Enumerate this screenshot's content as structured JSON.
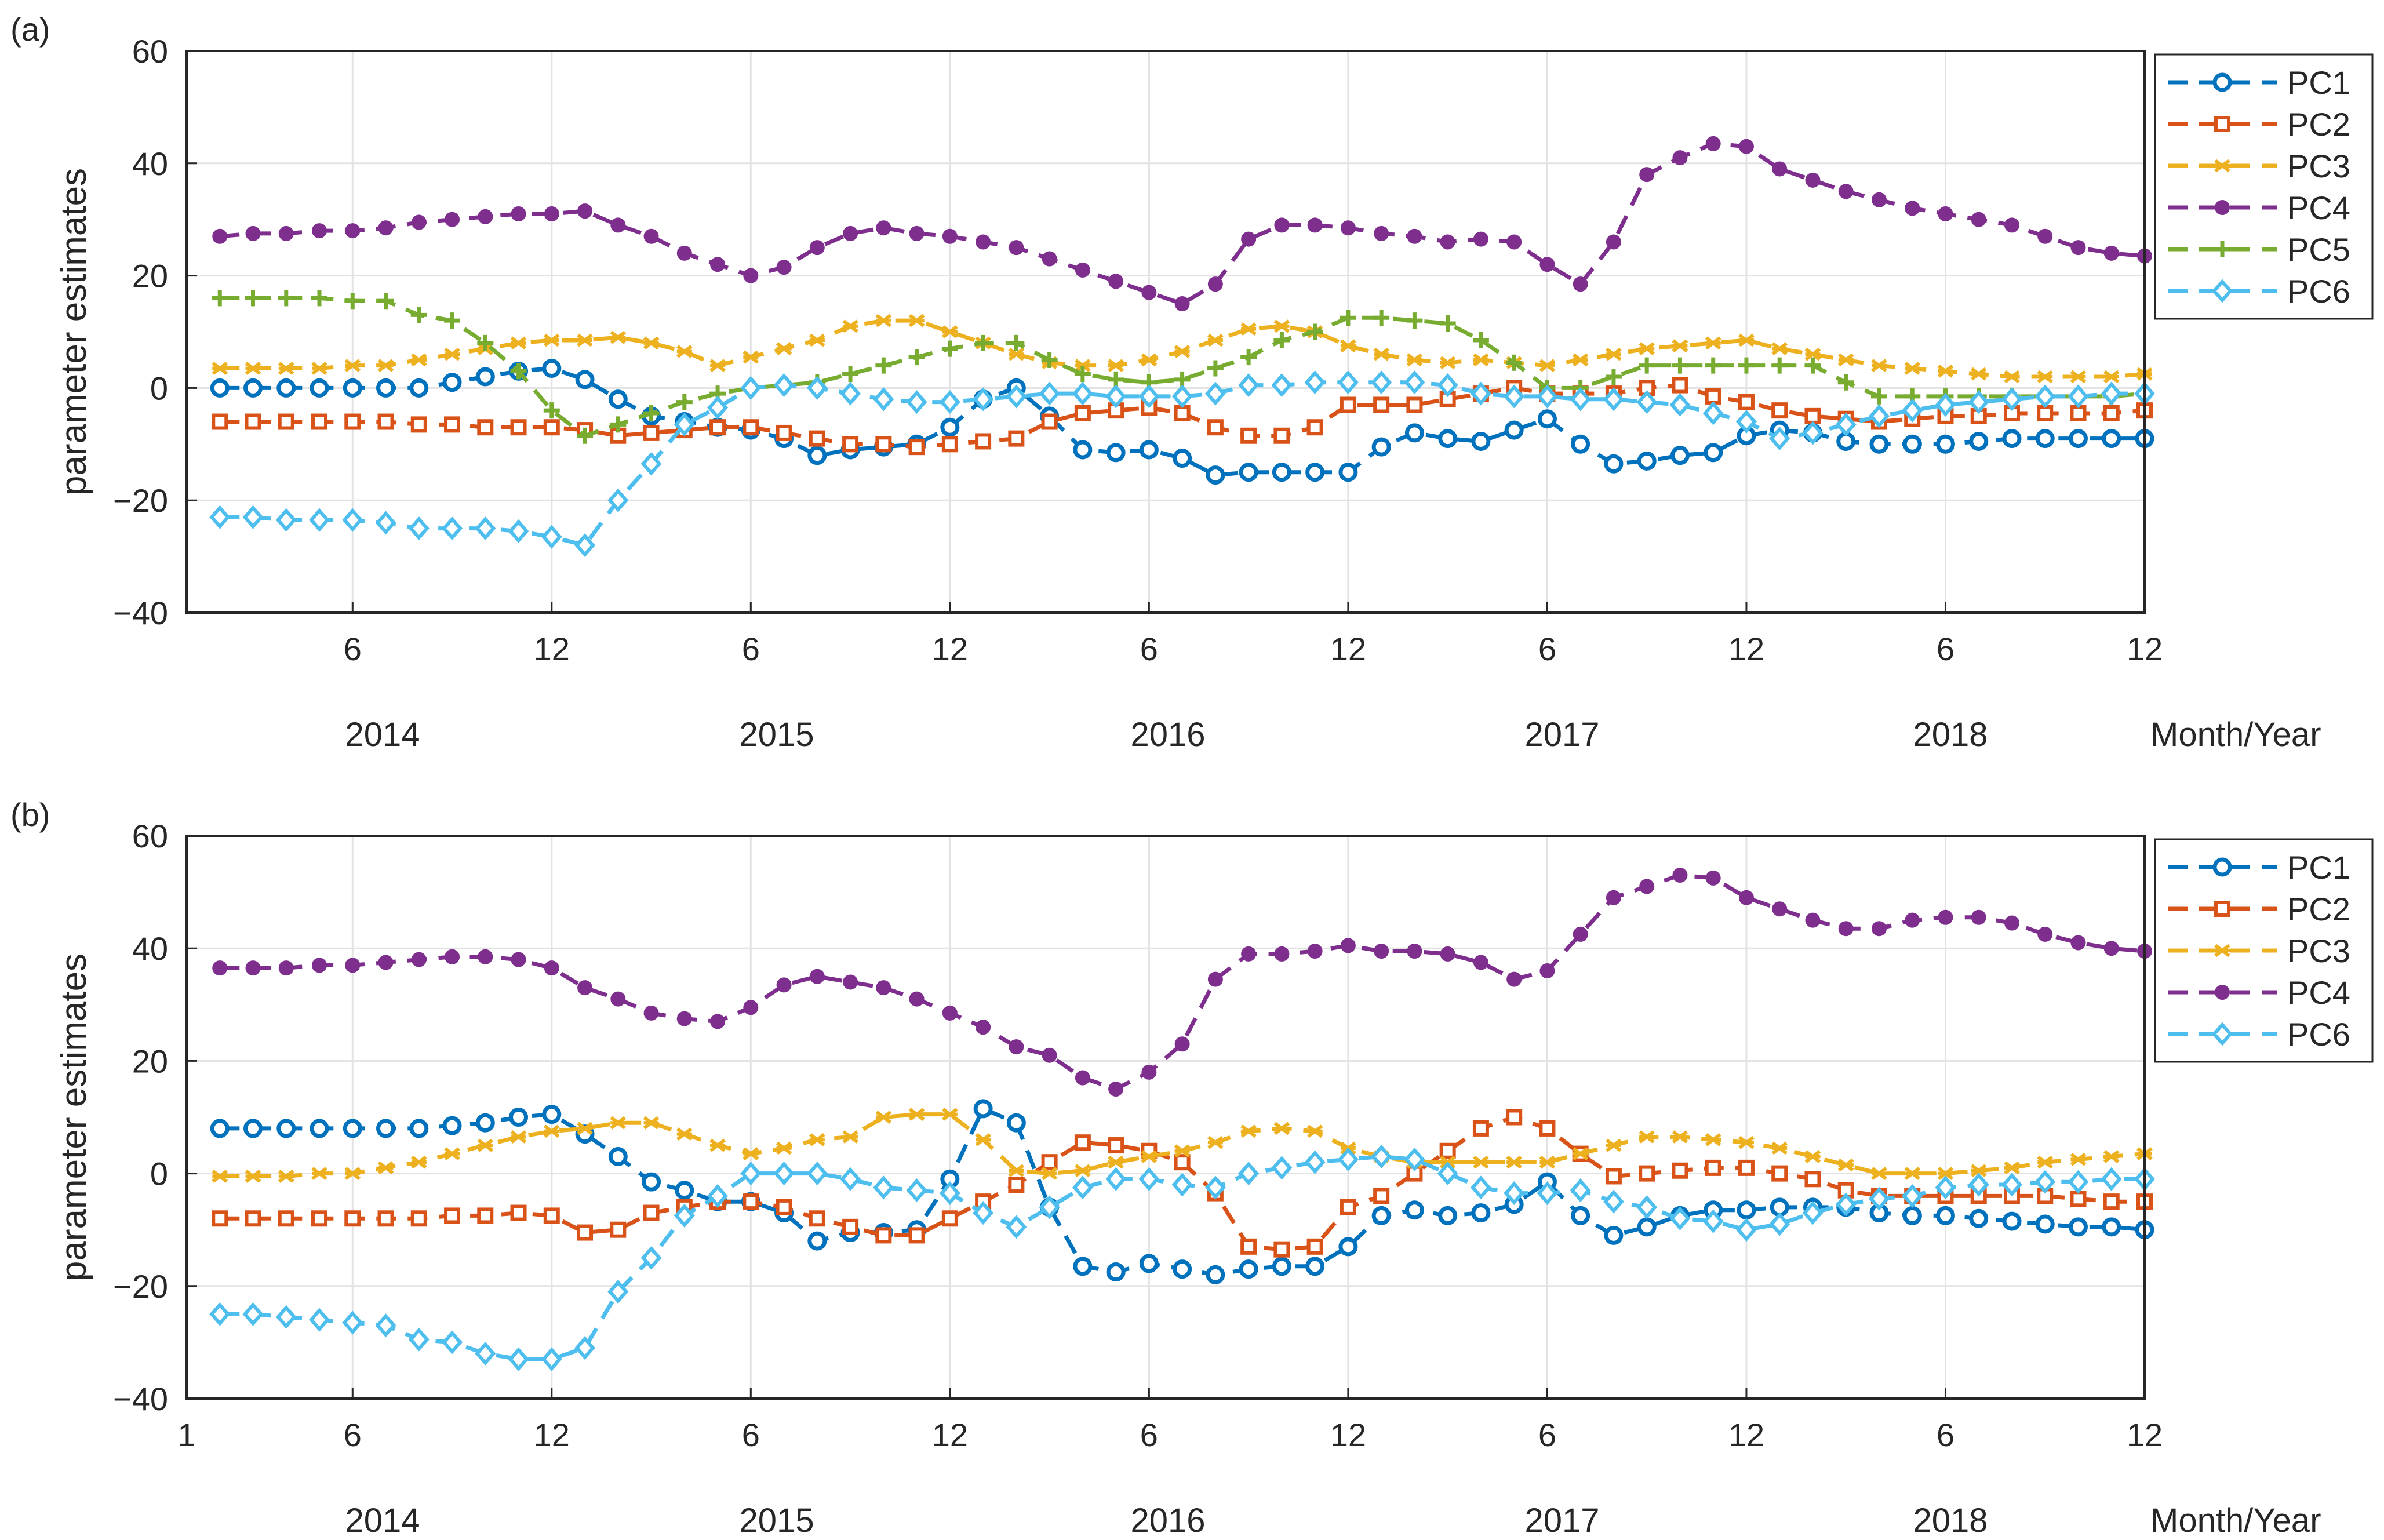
{
  "figure": {
    "months_ticks": [
      "6",
      "12",
      "6",
      "12",
      "6",
      "12",
      "6",
      "12",
      "6",
      "12"
    ],
    "year_labels": [
      "2014",
      "2015",
      "2016",
      "2017",
      "2018"
    ],
    "xaxis_unit": "Month/Year",
    "colors": {
      "PC1": "#0072BD",
      "PC2": "#D95319",
      "PC3": "#EDB120",
      "PC4": "#7E2F8E",
      "PC5": "#77AC30",
      "PC6": "#4DBEEE"
    }
  },
  "chart_data": [
    {
      "type": "line",
      "panel_label": "(a)",
      "ylabel": "parameter estimates",
      "xlabel": "Month/Year",
      "xlim": [
        1,
        60
      ],
      "ylim": [
        -40,
        60
      ],
      "yticks": [
        "−40",
        "−20",
        "0",
        "20",
        "40",
        "60"
      ],
      "first_xtick": "",
      "grid": true,
      "legend": "top-right",
      "x": [
        2,
        3,
        4,
        5,
        6,
        7,
        8,
        9,
        10,
        11,
        12,
        13,
        14,
        15,
        16,
        17,
        18,
        19,
        20,
        21,
        22,
        23,
        24,
        25,
        26,
        27,
        28,
        29,
        30,
        31,
        32,
        33,
        34,
        35,
        36,
        37,
        38,
        39,
        40,
        41,
        42,
        43,
        44,
        45,
        46,
        47,
        48,
        49,
        50,
        51,
        52,
        53,
        54,
        55,
        56,
        57,
        58,
        59,
        60
      ],
      "series": [
        {
          "name": "PC1",
          "marker": "circle",
          "values": [
            0,
            0,
            0,
            0,
            0,
            0,
            0,
            1,
            2,
            3,
            3.5,
            1.5,
            -2,
            -5,
            -6,
            -7,
            -7.5,
            -9,
            -12,
            -11,
            -10.5,
            -10,
            -7,
            -2,
            0,
            -5,
            -11,
            -11.5,
            -11,
            -12.5,
            -15.5,
            -15,
            -15,
            -15,
            -15,
            -10.5,
            -8,
            -9,
            -9.5,
            -7.5,
            -5.5,
            -10,
            -13.5,
            -13,
            -12,
            -11.5,
            -8.5,
            -7.5,
            -8,
            -9.5,
            -10,
            -10,
            -10,
            -9.5,
            -9,
            -9,
            -9,
            -9,
            -9
          ]
        },
        {
          "name": "PC2",
          "marker": "square",
          "values": [
            -6,
            -6,
            -6,
            -6,
            -6,
            -6,
            -6.5,
            -6.5,
            -7,
            -7,
            -7,
            -7.5,
            -8.5,
            -8,
            -7.5,
            -7,
            -7,
            -8,
            -9,
            -10,
            -10,
            -10.5,
            -10,
            -9.5,
            -9,
            -6,
            -4.5,
            -4,
            -3.5,
            -4.5,
            -7,
            -8.5,
            -8.5,
            -7,
            -3,
            -3,
            -3,
            -2,
            -1,
            0,
            -1,
            -1,
            -1,
            0,
            0.5,
            -1.5,
            -2.5,
            -4,
            -5,
            -5.5,
            -6,
            -5.5,
            -5,
            -5,
            -4.5,
            -4.5,
            -4.5,
            -4.5,
            -4
          ]
        },
        {
          "name": "PC3",
          "marker": "asterisk",
          "values": [
            3.5,
            3.5,
            3.5,
            3.5,
            4,
            4,
            5,
            6,
            7,
            8,
            8.5,
            8.5,
            9,
            8,
            6.5,
            4,
            5.5,
            7,
            8.5,
            11,
            12,
            12,
            10,
            8,
            6,
            4.5,
            4,
            4,
            5,
            6.5,
            8.5,
            10.5,
            11,
            10,
            7.5,
            6,
            5,
            4.5,
            5,
            4.5,
            4,
            5,
            6,
            7,
            7.5,
            8,
            8.5,
            7,
            6,
            5,
            4,
            3.5,
            3,
            2.5,
            2,
            2,
            2,
            2,
            2.5
          ]
        },
        {
          "name": "PC4",
          "marker": "dot",
          "values": [
            27,
            27.5,
            27.5,
            28,
            28,
            28.5,
            29.5,
            30,
            30.5,
            31,
            31,
            31.5,
            29,
            27,
            24,
            22,
            20,
            21.5,
            25,
            27.5,
            28.5,
            27.5,
            27,
            26,
            25,
            23,
            21,
            19,
            17,
            15,
            18.5,
            26.5,
            29,
            29,
            28.5,
            27.5,
            27,
            26,
            26.5,
            26,
            22,
            18.5,
            26,
            38,
            41,
            43.5,
            43,
            39,
            37,
            35,
            33.5,
            32,
            31,
            30,
            29,
            27,
            25,
            24,
            23.5
          ]
        },
        {
          "name": "PC5",
          "marker": "plus",
          "values": [
            16,
            16,
            16,
            16,
            15.5,
            15.5,
            13,
            12,
            8,
            3,
            -4,
            -8.5,
            -6.5,
            -4.5,
            -2.5,
            -1,
            0,
            0.5,
            1,
            2.5,
            4,
            5.5,
            7,
            8,
            8,
            5,
            2.5,
            1.5,
            1,
            1.5,
            3.5,
            5.5,
            8.5,
            10,
            12.5,
            12.5,
            12,
            11.5,
            8.5,
            4.5,
            0,
            0,
            2,
            4,
            4,
            4,
            4,
            4,
            4,
            1,
            -1.5,
            -1.5,
            -1.5,
            -1.5,
            -1.5,
            -1.5,
            -1.5,
            -1.5,
            -1
          ]
        },
        {
          "name": "PC6",
          "marker": "diamond",
          "values": [
            -23,
            -23,
            -23.5,
            -23.5,
            -23.5,
            -24,
            -25,
            -25,
            -25,
            -25.5,
            -26.5,
            -28,
            -20,
            -13.5,
            -6.5,
            -3.5,
            0,
            0.5,
            0,
            -1,
            -2,
            -2.5,
            -2.5,
            -2,
            -1.5,
            -1,
            -1,
            -1.5,
            -1.5,
            -1.5,
            -1,
            0.5,
            0.5,
            1,
            1,
            1,
            1,
            0.5,
            -1,
            -1.5,
            -1.5,
            -2,
            -2,
            -2.5,
            -3,
            -4.5,
            -6,
            -9,
            -8,
            -6.5,
            -5,
            -4,
            -3,
            -2.5,
            -2,
            -1.5,
            -1.5,
            -1,
            -1
          ]
        }
      ]
    },
    {
      "type": "line",
      "panel_label": "(b)",
      "ylabel": "parameter estimates",
      "xlabel": "Month/Year",
      "xlim": [
        1,
        60
      ],
      "ylim": [
        -40,
        60
      ],
      "yticks": [
        "−40",
        "−20",
        "0",
        "20",
        "40",
        "60"
      ],
      "first_xtick": "1",
      "grid": true,
      "legend": "top-right",
      "x": [
        2,
        3,
        4,
        5,
        6,
        7,
        8,
        9,
        10,
        11,
        12,
        13,
        14,
        15,
        16,
        17,
        18,
        19,
        20,
        21,
        22,
        23,
        24,
        25,
        26,
        27,
        28,
        29,
        30,
        31,
        32,
        33,
        34,
        35,
        36,
        37,
        38,
        39,
        40,
        41,
        42,
        43,
        44,
        45,
        46,
        47,
        48,
        49,
        50,
        51,
        52,
        53,
        54,
        55,
        56,
        57,
        58,
        59,
        60
      ],
      "series": [
        {
          "name": "PC1",
          "marker": "circle",
          "values": [
            8,
            8,
            8,
            8,
            8,
            8,
            8,
            8.5,
            9,
            10,
            10.5,
            7,
            3,
            -1.5,
            -3,
            -5,
            -5,
            -7,
            -12,
            -10.5,
            -10.5,
            -10,
            -1,
            11.5,
            9,
            -6,
            -16.5,
            -17.5,
            -16,
            -17,
            -18,
            -17,
            -16.5,
            -16.5,
            -13,
            -7.5,
            -6.5,
            -7.5,
            -7,
            -5.5,
            -1.5,
            -7.5,
            -11,
            -9.5,
            -7.5,
            -6.5,
            -6.5,
            -6,
            -6,
            -6,
            -7,
            -7.5,
            -7.5,
            -8,
            -8.5,
            -9,
            -9.5,
            -9.5,
            -10
          ]
        },
        {
          "name": "PC2",
          "marker": "square",
          "values": [
            -8,
            -8,
            -8,
            -8,
            -8,
            -8,
            -8,
            -7.5,
            -7.5,
            -7,
            -7.5,
            -10.5,
            -10,
            -7,
            -6,
            -5,
            -5,
            -6,
            -8,
            -9.5,
            -11,
            -11,
            -8,
            -5,
            -2,
            2,
            5.5,
            5,
            4,
            2,
            -3.5,
            -13,
            -13.5,
            -13,
            -6,
            -4,
            0,
            4,
            8,
            10,
            8,
            3.5,
            -0.5,
            0,
            0.5,
            1,
            1,
            0,
            -1,
            -3,
            -4,
            -4,
            -4,
            -4,
            -4,
            -4,
            -4.5,
            -5,
            -5
          ]
        },
        {
          "name": "PC3",
          "marker": "asterisk",
          "values": [
            -0.5,
            -0.5,
            -0.5,
            0,
            0,
            1,
            2,
            3.5,
            5,
            6.5,
            7.5,
            8,
            9,
            9,
            7,
            5,
            3.5,
            4.5,
            6,
            6.5,
            10,
            10.5,
            10.5,
            6,
            0.5,
            0,
            0.5,
            2,
            3,
            4,
            5.5,
            7.5,
            8,
            7.5,
            4.5,
            3,
            2,
            2,
            2,
            2,
            2,
            3.5,
            5,
            6.5,
            6.5,
            6,
            5.5,
            4.5,
            3,
            1.5,
            0,
            0,
            0,
            0.5,
            1,
            2,
            2.5,
            3,
            3.5
          ]
        },
        {
          "name": "PC4",
          "marker": "dot",
          "values": [
            36.5,
            36.5,
            36.5,
            37,
            37,
            37.5,
            38,
            38.5,
            38.5,
            38,
            36.5,
            33,
            31,
            28.5,
            27.5,
            27,
            29.5,
            33.5,
            35,
            34,
            33,
            31,
            28.5,
            26,
            22.5,
            21,
            17,
            15,
            18,
            23,
            34.5,
            39,
            39,
            39.5,
            40.5,
            39.5,
            39.5,
            39,
            37.5,
            34.5,
            36,
            42.5,
            49,
            51,
            53,
            52.5,
            49,
            47,
            45,
            43.5,
            43.5,
            45,
            45.5,
            45.5,
            44.5,
            42.5,
            41,
            40,
            39.5
          ]
        },
        {
          "name": "PC6",
          "marker": "diamond",
          "values": [
            -25,
            -25,
            -25.5,
            -26,
            -26.5,
            -27,
            -29.5,
            -30,
            -32,
            -33,
            -33,
            -31,
            -21,
            -15,
            -7.5,
            -4,
            0,
            0,
            0,
            -1,
            -2.5,
            -3,
            -3.5,
            -7,
            -9.5,
            -6,
            -2.5,
            -1,
            -1,
            -2,
            -2.5,
            0,
            1,
            2,
            2.5,
            3,
            2.5,
            0,
            -2.5,
            -3.5,
            -3.5,
            -3,
            -5,
            -6,
            -8,
            -8.5,
            -10,
            -9,
            -7,
            -5.5,
            -4.5,
            -4,
            -2.5,
            -2,
            -2,
            -1.5,
            -1.5,
            -1,
            -1
          ]
        }
      ]
    }
  ]
}
